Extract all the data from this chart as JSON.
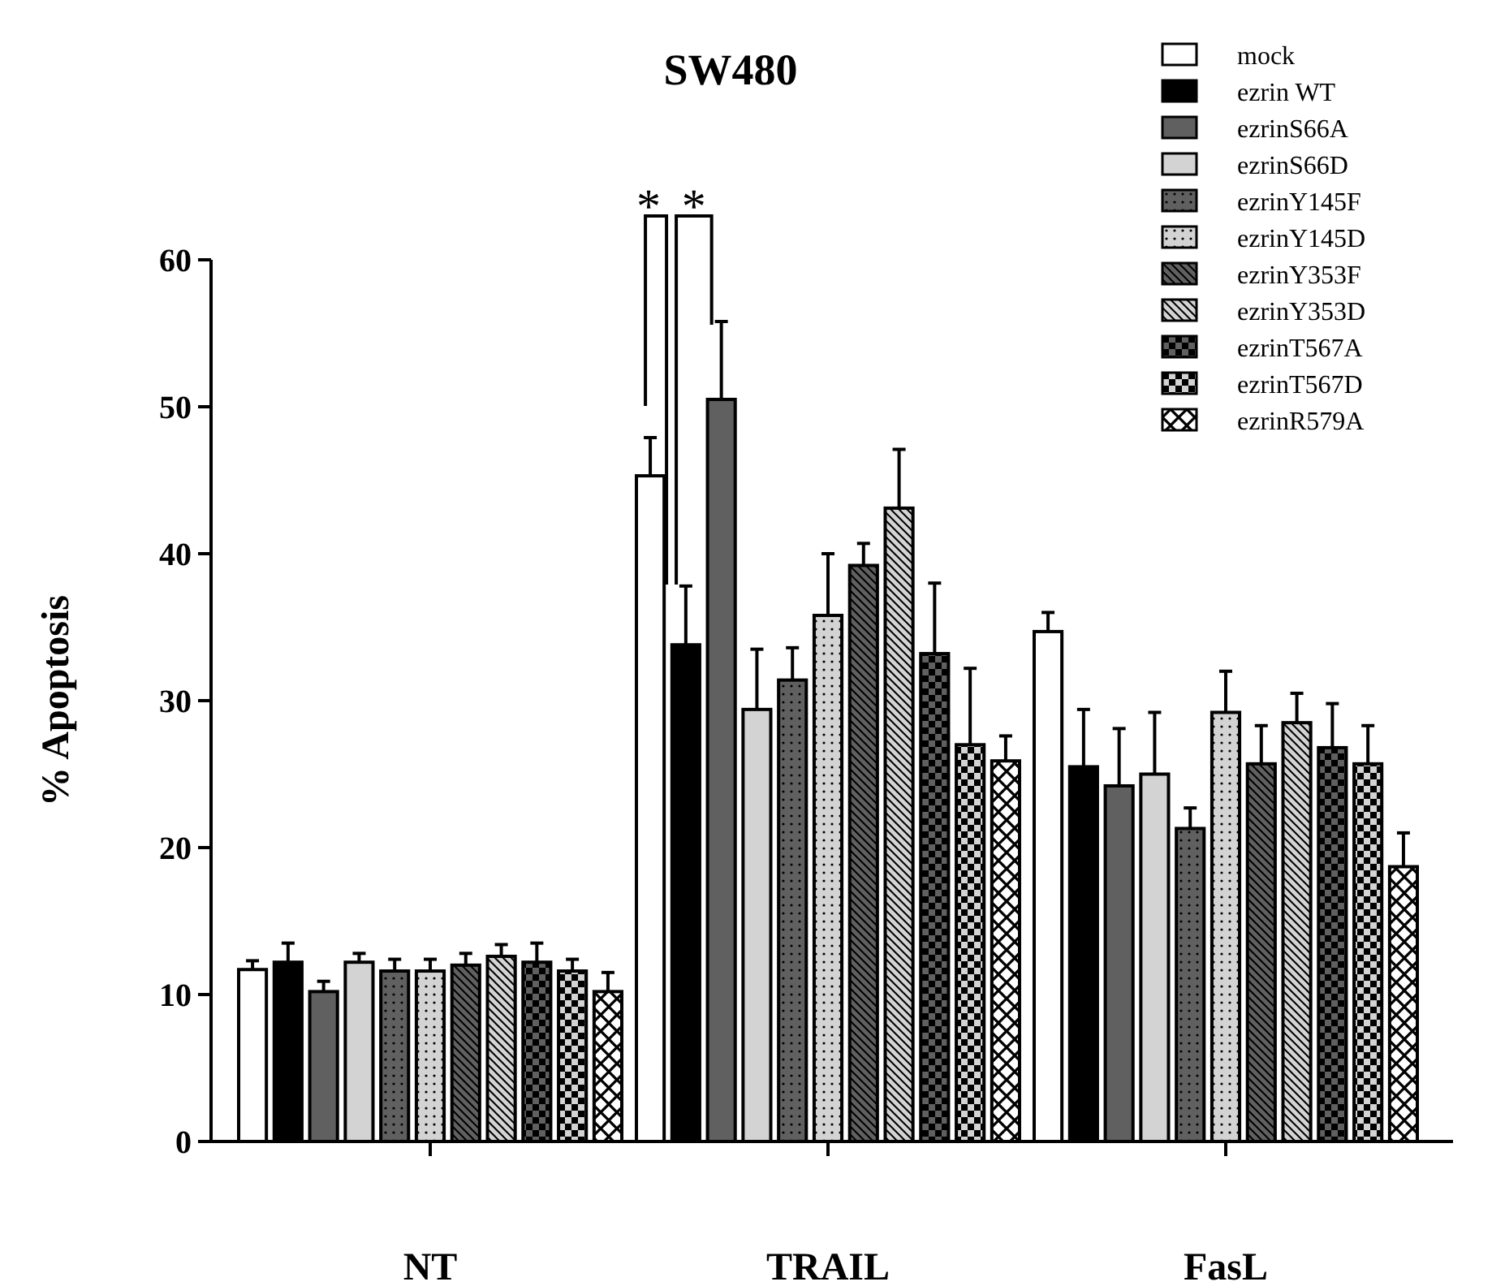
{
  "chart_data": {
    "type": "bar",
    "title": "SW480",
    "ylabel": "% Apoptosis",
    "categories": [
      "NT",
      "TRAIL",
      "FasL"
    ],
    "series": [
      {
        "name": "mock",
        "color": "#ffffff",
        "values": [
          11.7,
          45.3,
          34.7
        ],
        "errors": [
          0.6,
          2.6,
          1.3
        ]
      },
      {
        "name": "ezrin WT",
        "color": "#000000",
        "values": [
          12.2,
          33.8,
          25.5
        ],
        "errors": [
          1.3,
          4.0,
          3.9
        ]
      },
      {
        "name": "ezrinS66A",
        "color": "#606060",
        "values": [
          10.2,
          50.5,
          24.2
        ],
        "errors": [
          0.7,
          5.3,
          3.9
        ]
      },
      {
        "name": "ezrinS66D",
        "color": "#d3d3d3",
        "values": [
          12.2,
          29.4,
          25.0
        ],
        "errors": [
          0.6,
          4.1,
          4.2
        ]
      },
      {
        "name": "ezrinY145F",
        "color": "#606060",
        "values": [
          11.6,
          31.4,
          21.3
        ],
        "errors": [
          0.8,
          2.2,
          1.4
        ]
      },
      {
        "name": "ezrinY145D",
        "color": "#d3d3d3",
        "values": [
          11.6,
          35.8,
          29.2
        ],
        "errors": [
          0.8,
          4.2,
          2.8
        ]
      },
      {
        "name": "ezrinY353F",
        "color": "#606060",
        "values": [
          12.0,
          39.2,
          25.7
        ],
        "errors": [
          0.8,
          1.5,
          2.6
        ]
      },
      {
        "name": "ezrinY353D",
        "color": "#d3d3d3",
        "values": [
          12.6,
          43.1,
          28.5
        ],
        "errors": [
          0.8,
          4.0,
          2.0
        ]
      },
      {
        "name": "ezrinT567A",
        "color": "#606060",
        "values": [
          12.2,
          33.2,
          26.8
        ],
        "errors": [
          1.3,
          4.8,
          3.0
        ]
      },
      {
        "name": "ezrinT567D",
        "color": "#d3d3d3",
        "values": [
          11.6,
          27.0,
          25.7
        ],
        "errors": [
          0.8,
          5.2,
          2.6
        ]
      },
      {
        "name": "ezrinR579A",
        "color": "#ffffff",
        "values": [
          10.2,
          25.9,
          18.7
        ],
        "errors": [
          1.3,
          1.7,
          2.3
        ]
      }
    ],
    "ylim": [
      0,
      60
    ],
    "yticks": [
      0,
      10,
      20,
      30,
      40,
      50,
      60
    ],
    "annotations": [
      "*",
      "*"
    ],
    "grid": false,
    "legend": "top right"
  }
}
